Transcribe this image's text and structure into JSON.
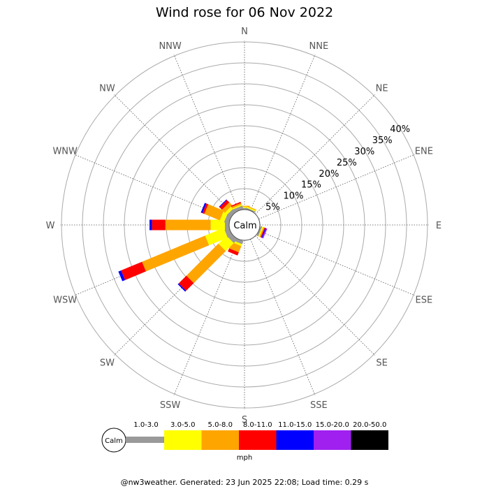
{
  "chart_data": {
    "type": "wind-rose",
    "title": "Wind rose for 06 Nov 2022",
    "directions": [
      "N",
      "NNE",
      "NE",
      "ENE",
      "E",
      "ESE",
      "SE",
      "SSE",
      "S",
      "SSW",
      "SW",
      "WSW",
      "W",
      "WNW",
      "NW",
      "NNW"
    ],
    "radial_ticks": [
      "5%",
      "10%",
      "15%",
      "20%",
      "25%",
      "30%",
      "35%",
      "40%"
    ],
    "radial_max_percent": 40,
    "calm_label": "Calm",
    "units": "mph",
    "speed_bins": [
      {
        "label": "1.0-3.0",
        "color": "#999999"
      },
      {
        "label": "3.0-5.0",
        "color": "#ffff00"
      },
      {
        "label": "5.0-8.0",
        "color": "#ffa500"
      },
      {
        "label": "8.0-11.0",
        "color": "#ff0000"
      },
      {
        "label": "11.0-15.0",
        "color": "#0000ff"
      },
      {
        "label": "15.0-20.0",
        "color": "#a020f0"
      },
      {
        "label": "20.0-50.0",
        "color": "#000000"
      }
    ],
    "series": [
      {
        "direction": "N",
        "values": [
          0.4,
          0.3,
          0.2,
          0.0,
          0.0,
          0.0,
          0.0
        ]
      },
      {
        "direction": "NNE",
        "values": [
          0.3,
          0.3,
          0.2,
          0.0,
          0.0,
          0.0,
          0.0
        ]
      },
      {
        "direction": "NE",
        "values": [
          0.0,
          0.0,
          0.0,
          0.0,
          0.0,
          0.0,
          0.0
        ]
      },
      {
        "direction": "ENE",
        "values": [
          0.0,
          0.0,
          0.0,
          0.0,
          0.0,
          0.0,
          0.0
        ]
      },
      {
        "direction": "E",
        "values": [
          0.0,
          0.0,
          0.0,
          0.0,
          0.0,
          0.0,
          0.0
        ]
      },
      {
        "direction": "ESE",
        "values": [
          0.4,
          0.3,
          0.3,
          0.2,
          0.2,
          0.3,
          0.0
        ]
      },
      {
        "direction": "SE",
        "values": [
          0.0,
          0.0,
          0.0,
          0.0,
          0.0,
          0.0,
          0.0
        ]
      },
      {
        "direction": "SSE",
        "values": [
          0.0,
          0.0,
          0.0,
          0.0,
          0.0,
          0.0,
          0.0
        ]
      },
      {
        "direction": "S",
        "values": [
          0.0,
          0.0,
          0.0,
          0.0,
          0.0,
          0.0,
          0.0
        ]
      },
      {
        "direction": "SSW",
        "values": [
          0.8,
          0.5,
          1.6,
          0.8,
          0.0,
          0.0,
          0.0
        ]
      },
      {
        "direction": "SW",
        "values": [
          1.2,
          2.7,
          10.8,
          2.6,
          0.3,
          0.0,
          0.0
        ]
      },
      {
        "direction": "WSW",
        "values": [
          1.2,
          4.8,
          16.3,
          5.4,
          0.7,
          0.0,
          0.0
        ]
      },
      {
        "direction": "W",
        "values": [
          1.0,
          3.4,
          10.8,
          3.2,
          0.6,
          0.0,
          0.0
        ]
      },
      {
        "direction": "WNW",
        "values": [
          1.1,
          1.1,
          4.0,
          0.5,
          0.4,
          0.0,
          0.0
        ]
      },
      {
        "direction": "NW",
        "values": [
          1.0,
          0.7,
          1.0,
          0.8,
          0.2,
          0.0,
          0.0
        ]
      },
      {
        "direction": "NNW",
        "values": [
          0.8,
          0.3,
          0.4,
          0.3,
          0.0,
          0.0,
          0.0
        ]
      }
    ]
  },
  "footer": "@nw3weather. Generated: 23 Jun 2025 22:08; Load time: 0.29 s"
}
